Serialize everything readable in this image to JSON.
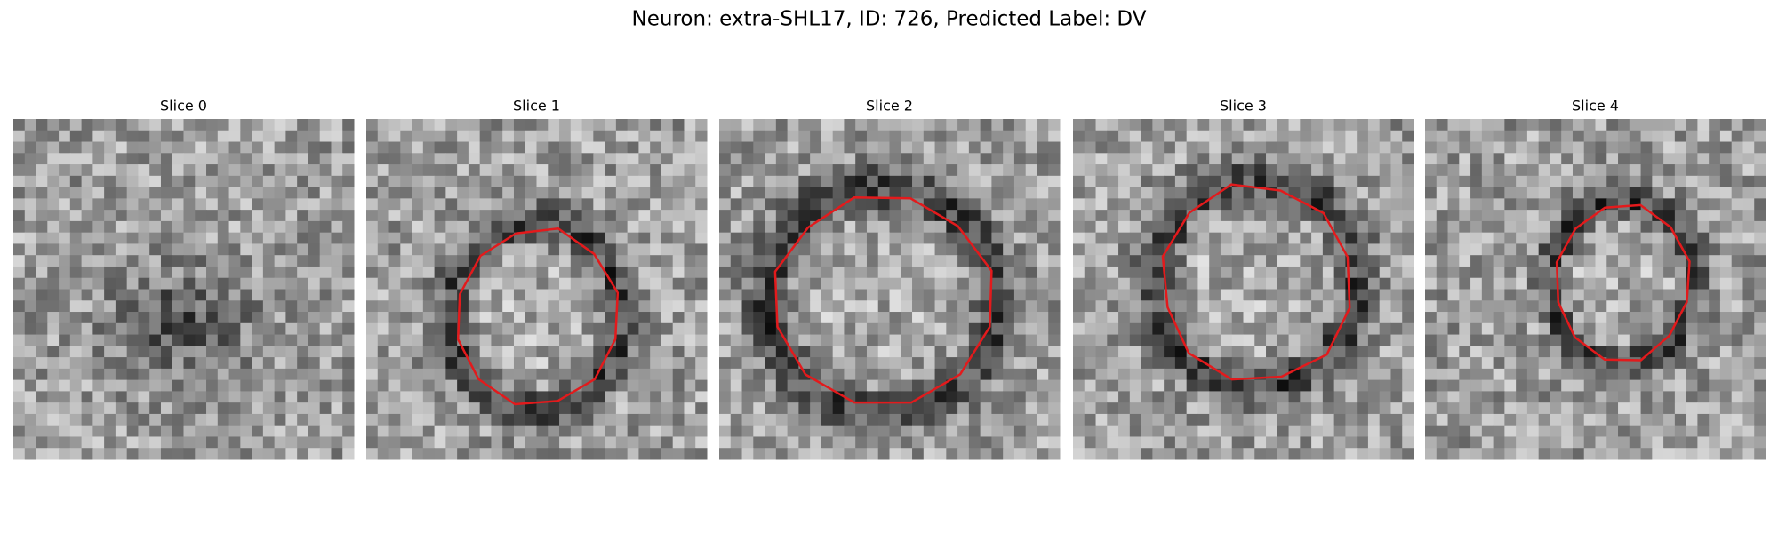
{
  "title": "Neuron: extra-SHL17, ID: 726, Predicted Label: DV",
  "panels": [
    {
      "title": "Slice 0"
    },
    {
      "title": "Slice 1"
    },
    {
      "title": "Slice 2"
    },
    {
      "title": "Slice 3"
    },
    {
      "title": "Slice 4"
    }
  ]
}
